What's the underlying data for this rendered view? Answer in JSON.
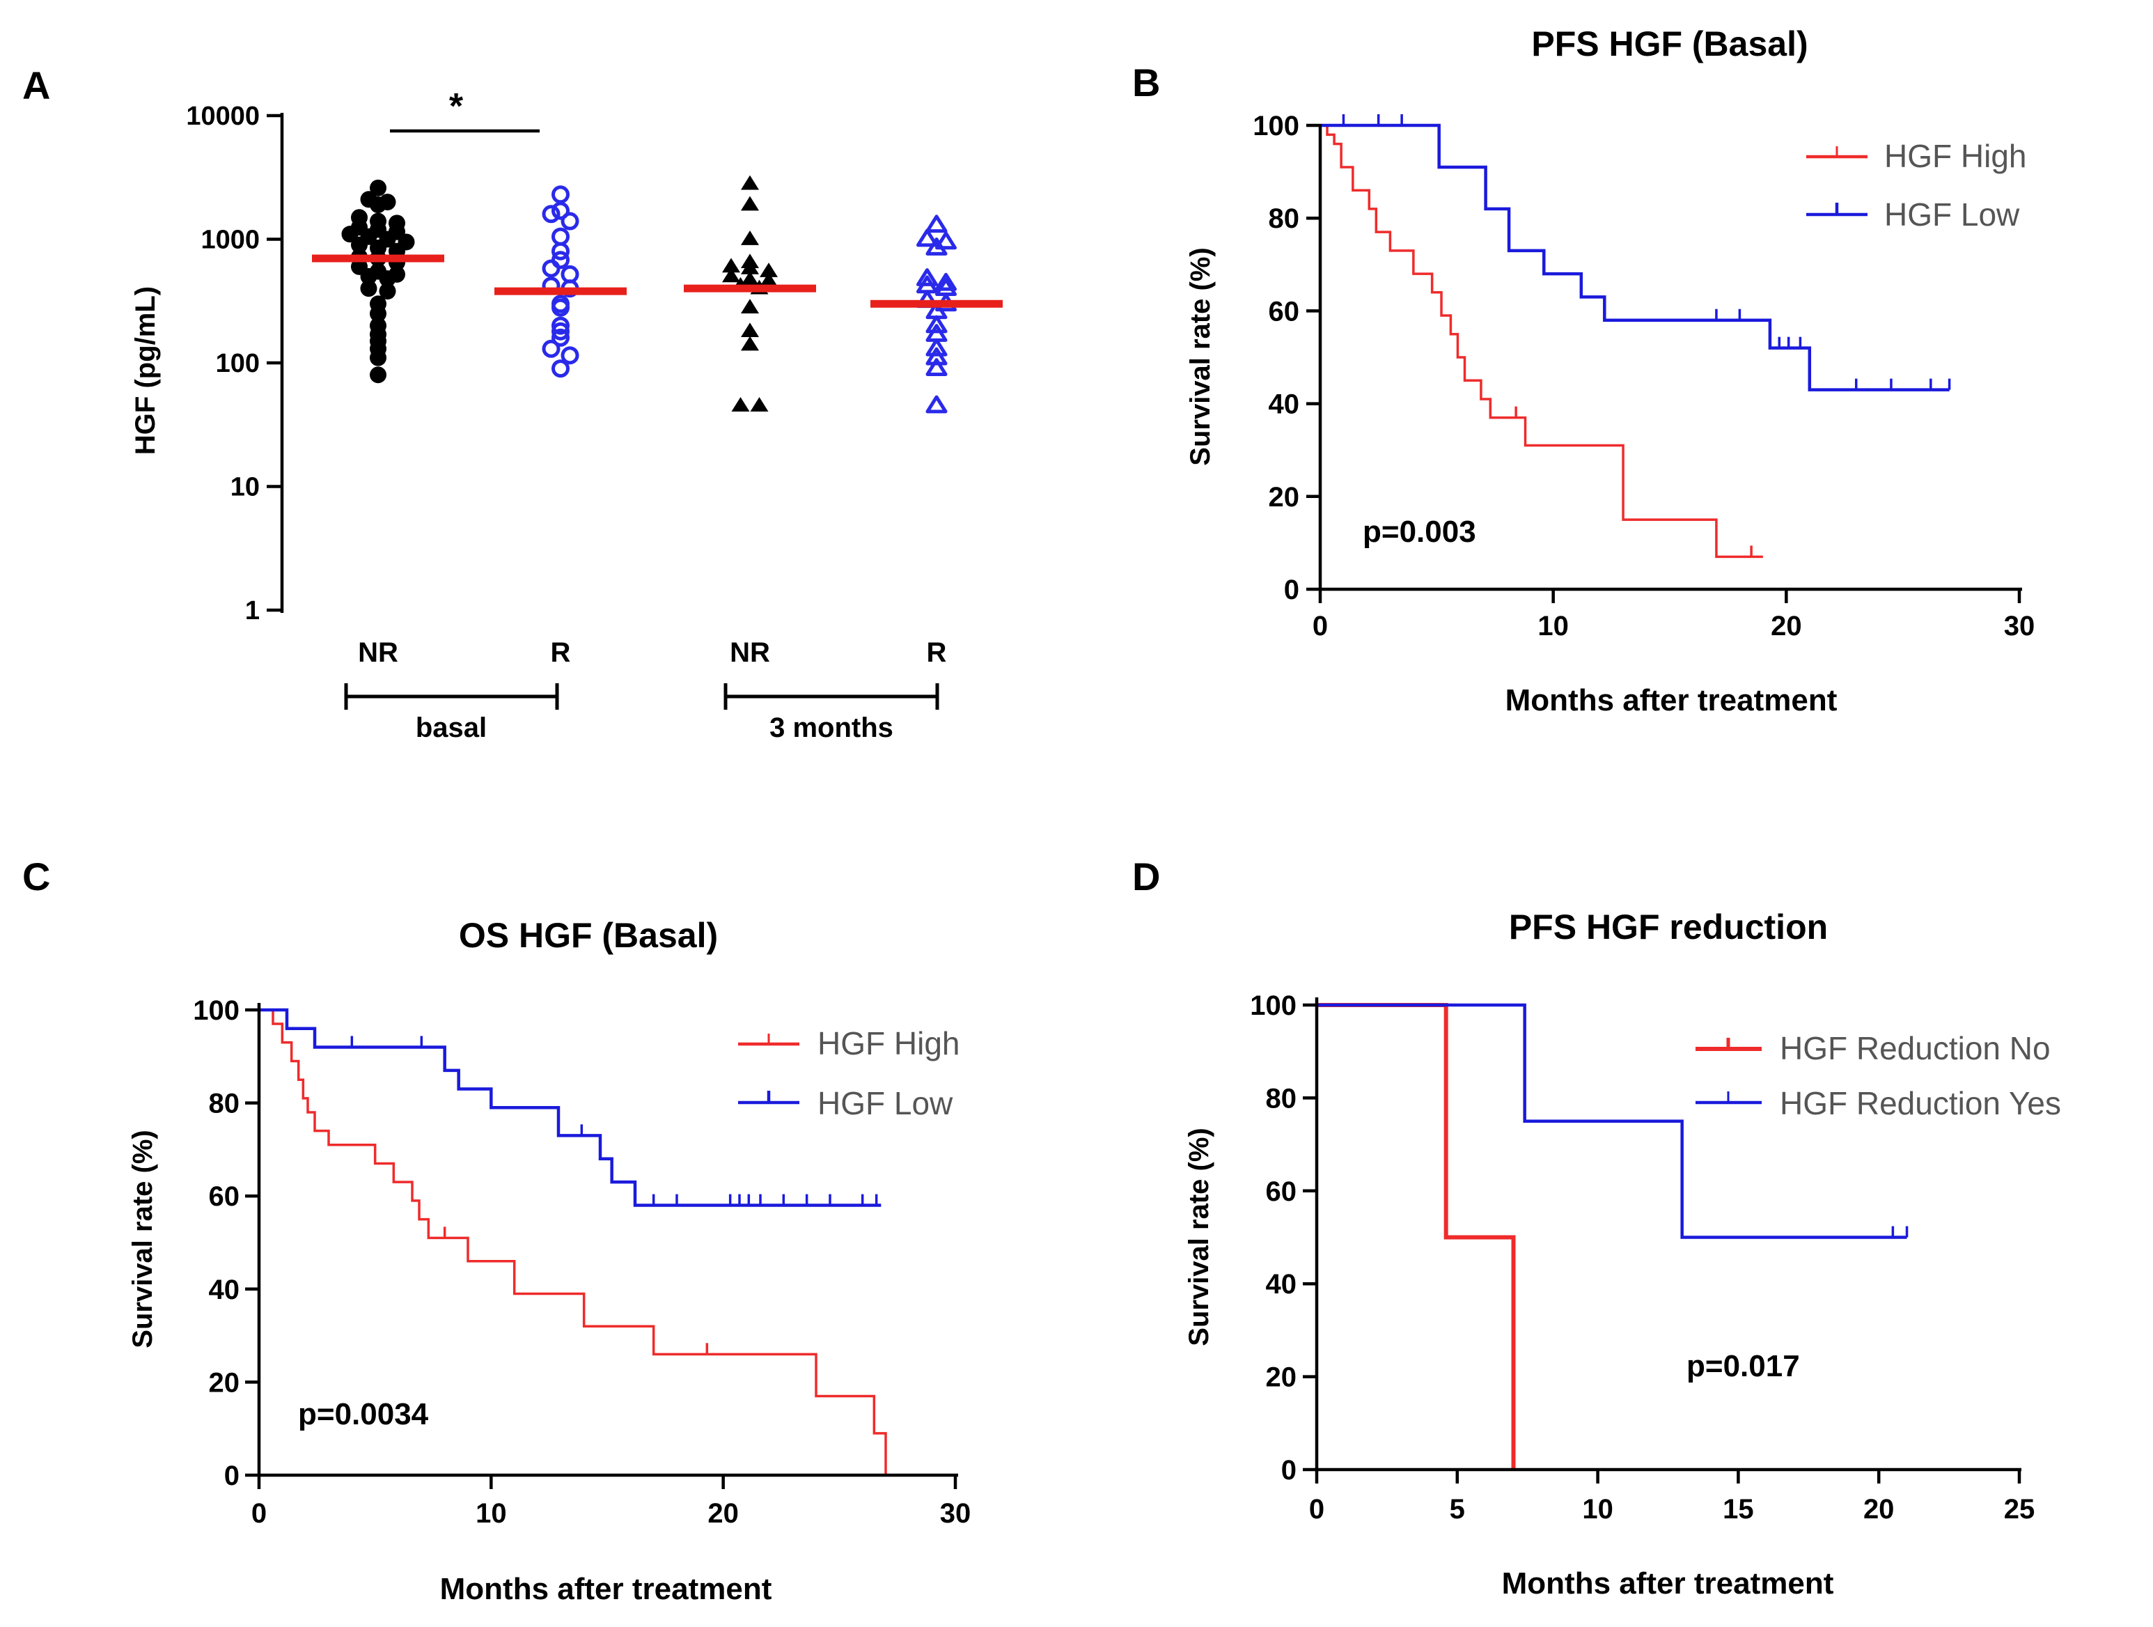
{
  "colors": {
    "red": "#ef2b2b",
    "blue": "#1a1adc",
    "black": "#000000",
    "median": "#e8201c",
    "blueMarker": "#2a2aea"
  },
  "panels": {
    "A": {
      "letter": "A"
    },
    "B": {
      "letter": "B"
    },
    "C": {
      "letter": "C"
    },
    "D": {
      "letter": "D"
    }
  },
  "chart_data": [
    {
      "id": "A",
      "type": "scatter",
      "title": "",
      "ylabel": "HGF (pg/mL)",
      "yscale": "log",
      "ylim": [
        1,
        10000
      ],
      "yticks": [
        1,
        10,
        100,
        1000,
        10000
      ],
      "ytick_labels": [
        "1",
        "10",
        "100",
        "1000",
        "10000"
      ],
      "categories": [
        "NR",
        "R",
        "NR",
        "R"
      ],
      "groups": [
        {
          "label": "basal",
          "from": 0,
          "to": 1
        },
        {
          "label": "3 months",
          "from": 2,
          "to": 3
        }
      ],
      "significance": {
        "from": 0,
        "to": 1,
        "label": "*"
      },
      "series": [
        {
          "name": "basal NR",
          "category": 0,
          "marker": "filled-circle",
          "color": "black",
          "median": 700,
          "values": [
            2600,
            2100,
            2000,
            1900,
            1500,
            1400,
            1350,
            1250,
            1200,
            1150,
            1100,
            1050,
            1000,
            950,
            900,
            850,
            800,
            720,
            700,
            650,
            600,
            550,
            520,
            500,
            480,
            400,
            380,
            300,
            250,
            200,
            170,
            150,
            130,
            110,
            80
          ]
        },
        {
          "name": "basal R",
          "category": 1,
          "marker": "open-circle",
          "color": "blue",
          "median": 380,
          "values": [
            2300,
            1700,
            1600,
            1400,
            1050,
            800,
            680,
            580,
            520,
            420,
            400,
            300,
            280,
            200,
            180,
            160,
            130,
            115,
            90
          ]
        },
        {
          "name": "3 months NR",
          "category": 2,
          "marker": "filled-triangle",
          "color": "black",
          "median": 400,
          "values": [
            2800,
            1900,
            1000,
            650,
            600,
            580,
            550,
            500,
            470,
            460,
            420,
            400,
            280,
            180,
            140,
            45,
            45
          ]
        },
        {
          "name": "3 months R",
          "category": 3,
          "marker": "open-triangle",
          "color": "blue",
          "median": 300,
          "values": [
            1300,
            1000,
            950,
            850,
            480,
            440,
            420,
            400,
            320,
            300,
            260,
            200,
            170,
            130,
            110,
            90,
            45
          ]
        }
      ]
    },
    {
      "id": "B",
      "type": "line",
      "title": "PFS HGF (Basal)",
      "xlabel": "Months after treatment",
      "ylabel": "Survival rate  (%)",
      "xlim": [
        0,
        30
      ],
      "ylim": [
        0,
        100
      ],
      "xticks": [
        0,
        10,
        20,
        30
      ],
      "yticks": [
        0,
        20,
        40,
        60,
        80,
        100
      ],
      "annotation": "p=0.003",
      "series": [
        {
          "name": "HGF High",
          "color": "red",
          "steps": [
            [
              0,
              100
            ],
            [
              0.3,
              98
            ],
            [
              0.6,
              96
            ],
            [
              0.9,
              91
            ],
            [
              1.4,
              86
            ],
            [
              2.1,
              82
            ],
            [
              2.4,
              77
            ],
            [
              3,
              73
            ],
            [
              4,
              68
            ],
            [
              4.8,
              64
            ],
            [
              5.2,
              59
            ],
            [
              5.6,
              55
            ],
            [
              5.9,
              50
            ],
            [
              6.2,
              45
            ],
            [
              6.9,
              41
            ],
            [
              7.3,
              37
            ],
            [
              8.8,
              31
            ],
            [
              13,
              15
            ],
            [
              17,
              7
            ],
            [
              19,
              7
            ]
          ],
          "censors": [
            [
              8.4,
              37
            ],
            [
              18.5,
              7
            ]
          ]
        },
        {
          "name": "HGF Low",
          "color": "blue",
          "steps": [
            [
              0,
              100
            ],
            [
              5.1,
              91
            ],
            [
              7.1,
              82
            ],
            [
              8.1,
              73
            ],
            [
              9.6,
              68
            ],
            [
              11.2,
              63
            ],
            [
              12.2,
              58
            ],
            [
              19.3,
              52
            ],
            [
              21,
              43
            ],
            [
              27,
              43
            ]
          ],
          "censors": [
            [
              1,
              100
            ],
            [
              2.5,
              100
            ],
            [
              3.5,
              100
            ],
            [
              17,
              58
            ],
            [
              18,
              58
            ],
            [
              19.7,
              52
            ],
            [
              20.1,
              52
            ],
            [
              20.6,
              52
            ],
            [
              23,
              43
            ],
            [
              24.5,
              43
            ],
            [
              26.2,
              43
            ],
            [
              27,
              43
            ]
          ]
        }
      ]
    },
    {
      "id": "C",
      "type": "line",
      "title": "OS HGF (Basal)",
      "xlabel": "Months after treatment",
      "ylabel": "Survival rate  (%)",
      "xlim": [
        0,
        30
      ],
      "ylim": [
        0,
        100
      ],
      "xticks": [
        0,
        10,
        20,
        30
      ],
      "yticks": [
        0,
        20,
        40,
        60,
        80,
        100
      ],
      "annotation": "p=0.0034",
      "series": [
        {
          "name": "HGF High",
          "color": "red",
          "steps": [
            [
              0,
              100
            ],
            [
              0.6,
              97
            ],
            [
              1,
              93
            ],
            [
              1.4,
              89
            ],
            [
              1.7,
              85
            ],
            [
              1.9,
              81
            ],
            [
              2.1,
              78
            ],
            [
              2.4,
              74
            ],
            [
              3,
              71
            ],
            [
              5,
              67
            ],
            [
              5.8,
              63
            ],
            [
              6.6,
              59
            ],
            [
              6.9,
              55
            ],
            [
              7.3,
              51
            ],
            [
              9,
              46
            ],
            [
              11,
              39
            ],
            [
              14,
              32
            ],
            [
              17,
              26
            ],
            [
              24,
              17
            ],
            [
              26.5,
              9
            ],
            [
              27,
              0
            ]
          ],
          "censors": [
            [
              8,
              51
            ],
            [
              19.3,
              26
            ]
          ]
        },
        {
          "name": "HGF Low",
          "color": "blue",
          "steps": [
            [
              0,
              100
            ],
            [
              1.2,
              96
            ],
            [
              2.4,
              92
            ],
            [
              8,
              87
            ],
            [
              8.6,
              83
            ],
            [
              10,
              79
            ],
            [
              12.9,
              73
            ],
            [
              14.7,
              68
            ],
            [
              15.2,
              63
            ],
            [
              16.2,
              58
            ],
            [
              26.8,
              58
            ]
          ],
          "censors": [
            [
              4,
              92
            ],
            [
              7,
              92
            ],
            [
              13.9,
              73
            ],
            [
              17,
              58
            ],
            [
              18,
              58
            ],
            [
              20.3,
              58
            ],
            [
              20.7,
              58
            ],
            [
              21.1,
              58
            ],
            [
              21.6,
              58
            ],
            [
              22.6,
              58
            ],
            [
              23.6,
              58
            ],
            [
              24.6,
              58
            ],
            [
              26,
              58
            ],
            [
              26.6,
              58
            ]
          ]
        }
      ]
    },
    {
      "id": "D",
      "type": "line",
      "title": "PFS HGF reduction",
      "xlabel": "Months after treatment",
      "ylabel": "Survival rate  (%)",
      "xlim": [
        0,
        25
      ],
      "ylim": [
        0,
        100
      ],
      "xticks": [
        0,
        5,
        10,
        15,
        20,
        25
      ],
      "yticks": [
        0,
        20,
        40,
        60,
        80,
        100
      ],
      "annotation": "p=0.017",
      "series": [
        {
          "name": "HGF Reduction No",
          "color": "red",
          "steps": [
            [
              0,
              100
            ],
            [
              4.6,
              50
            ],
            [
              7,
              0
            ]
          ],
          "censors": []
        },
        {
          "name": "HGF Reduction Yes",
          "color": "blue",
          "steps": [
            [
              0,
              100
            ],
            [
              7.4,
              75
            ],
            [
              13,
              50
            ],
            [
              21,
              50
            ]
          ],
          "censors": [
            [
              20.5,
              50
            ],
            [
              21,
              50
            ]
          ]
        }
      ]
    }
  ]
}
